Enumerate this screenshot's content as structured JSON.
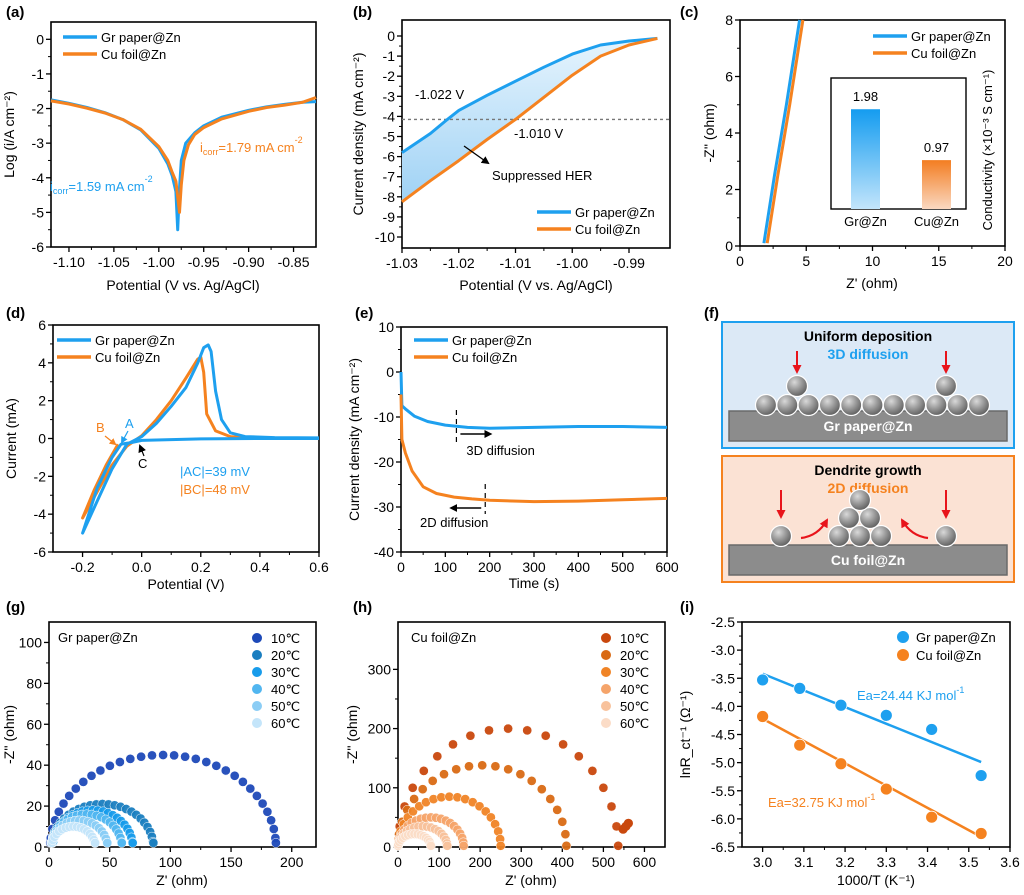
{
  "colors": {
    "gr": "#1ea0ef",
    "cu": "#f5821f",
    "black": "#000000",
    "panel_f_top_bg": "#dce9f6",
    "panel_f_top_border": "#1ea0ef",
    "panel_f_bottom_bg": "#fbe2d4",
    "panel_f_bottom_border": "#f5821f",
    "substrate": "#8c8c8c",
    "arrow_red": "#e8141b"
  },
  "chart_data": [
    {
      "id": "a",
      "panel_label": "(a)",
      "type": "line",
      "xlabel": "Potential (V vs. Ag/AgCl)",
      "ylabel": "Log (i/A cm⁻²)",
      "xlim": [
        -1.12,
        -0.825
      ],
      "ylim": [
        -6,
        0.5
      ],
      "xticks": [
        "-1.10",
        "-1.05",
        "-1.00",
        "-0.95",
        "-0.90",
        "-0.85"
      ],
      "xtick_values": [
        -1.1,
        -1.05,
        -1.0,
        -0.95,
        -0.9,
        -0.85
      ],
      "yticks": [
        "0",
        "-1",
        "-2",
        "-3",
        "-4",
        "-5",
        "-6"
      ],
      "ytick_values": [
        0,
        -1,
        -2,
        -3,
        -4,
        -5,
        -6
      ],
      "legend": [
        "Gr paper@Zn",
        "Cu foil@Zn"
      ],
      "legend_position": "top-left",
      "series": [
        {
          "name": "Gr paper@Zn",
          "color_key": "gr",
          "x": [
            -1.12,
            -1.1,
            -1.08,
            -1.06,
            -1.04,
            -1.02,
            -1.0,
            -0.99,
            -0.985,
            -0.981,
            -0.979,
            -0.977,
            -0.975,
            -0.97,
            -0.96,
            -0.95,
            -0.93,
            -0.9,
            -0.88,
            -0.86,
            -0.84,
            -0.825
          ],
          "y": [
            -1.75,
            -1.85,
            -1.97,
            -2.12,
            -2.32,
            -2.62,
            -3.15,
            -3.6,
            -3.95,
            -4.4,
            -5.5,
            -4.3,
            -3.5,
            -3.0,
            -2.7,
            -2.5,
            -2.25,
            -2.05,
            -1.95,
            -1.88,
            -1.82,
            -1.8
          ]
        },
        {
          "name": "Cu foil@Zn",
          "color_key": "cu",
          "x": [
            -1.12,
            -1.1,
            -1.08,
            -1.06,
            -1.04,
            -1.02,
            -1.0,
            -0.99,
            -0.985,
            -0.981,
            -0.977,
            -0.975,
            -0.972,
            -0.967,
            -0.96,
            -0.95,
            -0.93,
            -0.9,
            -0.88,
            -0.86,
            -0.84,
            -0.825
          ],
          "y": [
            -1.78,
            -1.87,
            -1.99,
            -2.13,
            -2.32,
            -2.6,
            -3.1,
            -3.5,
            -3.85,
            -4.1,
            -5.0,
            -4.2,
            -3.5,
            -3.05,
            -2.75,
            -2.55,
            -2.3,
            -2.08,
            -1.97,
            -1.9,
            -1.82,
            -1.68
          ]
        }
      ],
      "annotations": [
        {
          "text_main": "i",
          "text_sub": "corr",
          "text_rest": "=1.79 mA cm",
          "sup": "-2",
          "color_key": "cu"
        },
        {
          "text_main": "i",
          "text_sub": "corr",
          "text_rest": "=1.59 mA cm",
          "sup": "-2",
          "color_key": "gr"
        }
      ]
    },
    {
      "id": "b",
      "panel_label": "(b)",
      "type": "line",
      "xlabel": "Potential (V vs. Ag/AgCl)",
      "ylabel": "Current density (mA cm⁻²)",
      "xlim": [
        -1.03,
        -0.985
      ],
      "ylim": [
        -10.5,
        0.7
      ],
      "xticks": [
        "-1.03",
        "-1.02",
        "-1.01",
        "-1.00",
        "-0.99"
      ],
      "xtick_values": [
        -1.03,
        -1.02,
        -1.01,
        -1.0,
        -0.99
      ],
      "yticks": [
        "0",
        "-1",
        "-2",
        "-3",
        "-4",
        "-5",
        "-6",
        "-7",
        "-8",
        "-9",
        "-10"
      ],
      "ytick_values": [
        0,
        -1,
        -2,
        -3,
        -4,
        -5,
        -6,
        -7,
        -8,
        -9,
        -10
      ],
      "legend": [
        "Gr paper@Zn",
        "Cu foil@Zn"
      ],
      "legend_position": "bottom-right",
      "reference_line_y": -4.15,
      "series": [
        {
          "name": "Gr paper@Zn",
          "color_key": "gr",
          "x": [
            -1.03,
            -1.025,
            -1.022,
            -1.02,
            -1.015,
            -1.01,
            -1.005,
            -1.0,
            -0.995,
            -0.99,
            -0.985
          ],
          "y": [
            -5.8,
            -4.85,
            -4.15,
            -3.7,
            -2.95,
            -2.25,
            -1.55,
            -0.9,
            -0.45,
            -0.25,
            -0.12
          ]
        },
        {
          "name": "Cu foil@Zn",
          "color_key": "cu",
          "x": [
            -1.03,
            -1.025,
            -1.02,
            -1.015,
            -1.01,
            -1.005,
            -1.0,
            -0.995,
            -0.99,
            -0.985
          ],
          "y": [
            -8.25,
            -7.2,
            -6.2,
            -5.15,
            -4.15,
            -3.05,
            -1.95,
            -1.0,
            -0.45,
            -0.12
          ]
        }
      ],
      "annotations": [
        "-1.022 V",
        "-1.010 V",
        "Suppressed HER"
      ]
    },
    {
      "id": "c",
      "panel_label": "(c)",
      "type": "line",
      "xlabel": "Z' (ohm)",
      "ylabel": "-Z'' (ohm)",
      "xlim": [
        0,
        20
      ],
      "ylim": [
        0,
        8
      ],
      "xticks": [
        "0",
        "5",
        "10",
        "15",
        "20"
      ],
      "xtick_values": [
        0,
        5,
        10,
        15,
        20
      ],
      "yticks": [
        "0",
        "2",
        "4",
        "6",
        "8"
      ],
      "ytick_values": [
        0,
        2,
        4,
        6,
        8
      ],
      "legend": [
        "Gr paper@Zn",
        "Cu foil@Zn"
      ],
      "legend_position": "top-right",
      "series": [
        {
          "name": "Gr paper@Zn",
          "color_key": "gr",
          "x": [
            1.8,
            2.6,
            3.5,
            4.5
          ],
          "y": [
            0.1,
            2.5,
            5.0,
            8.0
          ]
        },
        {
          "name": "Cu foil@Zn",
          "color_key": "cu",
          "x": [
            2.05,
            2.85,
            3.75,
            4.75
          ],
          "y": [
            0.1,
            2.5,
            5.0,
            8.0
          ]
        }
      ],
      "inset": {
        "type": "bar",
        "categories": [
          "Gr@Zn",
          "Cu@Zn"
        ],
        "values": [
          1.98,
          0.97
        ],
        "value_labels": [
          "1.98",
          "0.97"
        ],
        "ylabel": "Conductivity (×10⁻³ S cm⁻¹)",
        "ylim": [
          0,
          2.6
        ]
      }
    },
    {
      "id": "d",
      "panel_label": "(d)",
      "type": "line",
      "xlabel": "Potential (V)",
      "ylabel": "Current (mA)",
      "xlim": [
        -0.3,
        0.6
      ],
      "ylim": [
        -6,
        6
      ],
      "xticks": [
        "-0.2",
        "0.0",
        "0.2",
        "0.4",
        "0.6"
      ],
      "xtick_values": [
        -0.2,
        0.0,
        0.2,
        0.4,
        0.6
      ],
      "yticks": [
        "6",
        "4",
        "2",
        "0",
        "-2",
        "-4",
        "-6"
      ],
      "ytick_values": [
        6,
        4,
        2,
        0,
        -2,
        -4,
        -6
      ],
      "legend": [
        "Gr paper@Zn",
        "Cu foil@Zn"
      ],
      "legend_position": "top-left",
      "series": [
        {
          "name": "Gr paper@Zn",
          "color_key": "gr",
          "x": [
            0.6,
            0.4,
            0.2,
            0.0,
            -0.03,
            -0.07,
            -0.1,
            -0.15,
            -0.2,
            -0.15,
            -0.1,
            -0.05,
            0.0,
            0.05,
            0.1,
            0.15,
            0.19,
            0.21,
            0.225,
            0.235,
            0.25,
            0.27,
            0.3,
            0.35,
            0.45,
            0.6
          ],
          "y": [
            0.0,
            0.0,
            -0.02,
            -0.1,
            -0.2,
            -0.3,
            -1.0,
            -2.6,
            -5.0,
            -3.3,
            -1.6,
            -0.3,
            0.1,
            0.8,
            1.7,
            2.7,
            4.0,
            4.8,
            4.95,
            4.6,
            2.5,
            1.0,
            0.3,
            0.1,
            0.05,
            0.03
          ]
        },
        {
          "name": "Cu foil@Zn",
          "color_key": "cu",
          "x": [
            -0.08,
            -0.12,
            -0.16,
            -0.2,
            -0.15,
            -0.1,
            -0.05,
            0.0,
            0.05,
            0.1,
            0.15,
            0.19,
            0.2,
            0.21,
            0.22,
            0.25,
            0.3,
            0.35
          ],
          "y": [
            -0.3,
            -1.4,
            -2.7,
            -4.2,
            -2.8,
            -1.4,
            -0.4,
            0.15,
            1.0,
            2.0,
            3.2,
            4.2,
            4.3,
            3.5,
            1.3,
            0.4,
            0.1,
            0.05
          ]
        }
      ],
      "annotations": {
        "A": "A",
        "B": "B",
        "C": "C",
        "ac": "|AC|=39 mV",
        "bc": "|BC|=48 mV"
      }
    },
    {
      "id": "e",
      "panel_label": "(e)",
      "type": "line",
      "xlabel": "Time (s)",
      "ylabel": "Current density (mA cm⁻²)",
      "xlim": [
        0,
        600
      ],
      "ylim": [
        -40,
        10
      ],
      "xticks": [
        "0",
        "100",
        "200",
        "300",
        "400",
        "500",
        "600"
      ],
      "xtick_values": [
        0,
        100,
        200,
        300,
        400,
        500,
        600
      ],
      "yticks": [
        "10",
        "0",
        "-10",
        "-20",
        "-30",
        "-40"
      ],
      "ytick_values": [
        10,
        0,
        -10,
        -20,
        -30,
        -40
      ],
      "legend": [
        "Gr paper@Zn",
        "Cu foil@Zn"
      ],
      "legend_position": "top-left",
      "series": [
        {
          "name": "Gr paper@Zn",
          "color_key": "gr",
          "x": [
            0,
            2,
            10,
            30,
            60,
            100,
            150,
            200,
            300,
            400,
            500,
            600
          ],
          "y": [
            0,
            -7.5,
            -8.2,
            -9.8,
            -11.0,
            -11.8,
            -12.3,
            -12.5,
            -12.3,
            -12.1,
            -12.1,
            -12.3
          ]
        },
        {
          "name": "Cu foil@Zn",
          "color_key": "cu",
          "x": [
            0,
            2,
            10,
            25,
            50,
            80,
            120,
            160,
            200,
            300,
            400,
            500,
            600
          ],
          "y": [
            -5,
            -15,
            -18,
            -22,
            -25.5,
            -27,
            -27.8,
            -28.2,
            -28.5,
            -28.8,
            -28.7,
            -28.4,
            -28.1
          ]
        }
      ],
      "markers": [
        {
          "x": 125,
          "label": "3D diffusion",
          "direction": "right"
        },
        {
          "x": 190,
          "label": "2D diffusion",
          "direction": "left"
        }
      ]
    },
    {
      "id": "g",
      "panel_label": "(g)",
      "type": "scatter",
      "xlabel": "Z' (ohm)",
      "ylabel": "-Z'' (ohm)",
      "xlim": [
        0,
        220
      ],
      "ylim": [
        0,
        110
      ],
      "xticks": [
        "0",
        "50",
        "100",
        "150",
        "200"
      ],
      "xtick_values": [
        0,
        50,
        100,
        150,
        200
      ],
      "yticks": [
        "0",
        "20",
        "40",
        "60",
        "80",
        "100"
      ],
      "ytick_values": [
        0,
        20,
        40,
        60,
        80,
        100
      ],
      "inner_title": "Gr paper@Zn",
      "legend_position": "top-right",
      "series": [
        {
          "name": "10℃",
          "color": "#1d49b8",
          "r_ct": 93,
          "center_x": 94,
          "peak": 45,
          "n": 32
        },
        {
          "name": "20℃",
          "color": "#1a7ec0",
          "r_ct": 42,
          "center_x": 44,
          "peak": 21,
          "n": 26
        },
        {
          "name": "30℃",
          "color": "#189ceb",
          "r_ct": 33,
          "center_x": 36,
          "peak": 18,
          "n": 24
        },
        {
          "name": "40℃",
          "color": "#51b6f0",
          "r_ct": 29,
          "center_x": 31,
          "peak": 16,
          "n": 22
        },
        {
          "name": "50℃",
          "color": "#8bcdf5",
          "r_ct": 23,
          "center_x": 25,
          "peak": 13,
          "n": 20
        },
        {
          "name": "60℃",
          "color": "#c4e5fa",
          "r_ct": 18,
          "center_x": 20,
          "peak": 10,
          "n": 18
        }
      ]
    },
    {
      "id": "h",
      "panel_label": "(h)",
      "type": "scatter",
      "xlabel": "Z' (ohm)",
      "ylabel": "-Z'' (ohm)",
      "xlim": [
        0,
        650
      ],
      "ylim": [
        0,
        380
      ],
      "xticks": [
        "0",
        "100",
        "200",
        "300",
        "400",
        "500",
        "600"
      ],
      "xtick_values": [
        0,
        100,
        200,
        300,
        400,
        500,
        600
      ],
      "yticks": [
        "0",
        "100",
        "200",
        "300"
      ],
      "ytick_values": [
        0,
        100,
        200,
        300
      ],
      "inner_title": "Cu foil@Zn",
      "legend_position": "top-right",
      "series": [
        {
          "name": "10℃",
          "color": "#c9480d",
          "r_ct": 268,
          "center_x": 268,
          "peak": 200,
          "n": 18,
          "tail": true
        },
        {
          "name": "20℃",
          "color": "#d96a14",
          "r_ct": 205,
          "center_x": 205,
          "peak": 138,
          "n": 20,
          "tail": false
        },
        {
          "name": "30℃",
          "color": "#f08426",
          "r_ct": 125,
          "center_x": 125,
          "peak": 85,
          "n": 20,
          "tail": false
        },
        {
          "name": "40℃",
          "color": "#f5a46a",
          "r_ct": 80,
          "center_x": 80,
          "peak": 50,
          "n": 20,
          "tail": false
        },
        {
          "name": "50℃",
          "color": "#f8c29c",
          "r_ct": 60,
          "center_x": 60,
          "peak": 35,
          "n": 18,
          "tail": false
        },
        {
          "name": "60℃",
          "color": "#fbdcc7",
          "r_ct": 40,
          "center_x": 40,
          "peak": 22,
          "n": 16,
          "tail": false
        }
      ]
    },
    {
      "id": "i",
      "panel_label": "(i)",
      "type": "scatter",
      "xlabel": "1000/T (K⁻¹)",
      "ylabel": "lnR_ct⁻¹ (Ω⁻¹)",
      "xlim": [
        2.95,
        3.6
      ],
      "ylim": [
        -6.5,
        -2.5
      ],
      "xticks": [
        "3.0",
        "3.1",
        "3.2",
        "3.3",
        "3.4",
        "3.5",
        "3.6"
      ],
      "xtick_values": [
        3.0,
        3.1,
        3.2,
        3.3,
        3.4,
        3.5,
        3.6
      ],
      "yticks": [
        "-2.5",
        "-3.0",
        "-3.5",
        "-4.0",
        "-4.5",
        "-5.0",
        "-5.5",
        "-6.0",
        "-6.5"
      ],
      "ytick_values": [
        -2.5,
        -3.0,
        -3.5,
        -4.0,
        -4.5,
        -5.0,
        -5.5,
        -6.0,
        -6.5
      ],
      "legend": [
        "Gr paper@Zn",
        "Cu foil@Zn"
      ],
      "legend_position": "top-right",
      "series": [
        {
          "name": "Gr paper@Zn",
          "color_key": "gr",
          "x": [
            3.0,
            3.09,
            3.19,
            3.3,
            3.41,
            3.53
          ],
          "y": [
            -3.53,
            -3.68,
            -3.98,
            -4.16,
            -4.41,
            -5.23
          ],
          "fit": {
            "x": [
              3.0,
              3.53
            ],
            "y": [
              -3.42,
              -4.99
            ]
          },
          "label": "Ea=24.44 KJ mol",
          "label_sup": "-1"
        },
        {
          "name": "Cu foil@Zn",
          "color_key": "cu",
          "x": [
            3.0,
            3.09,
            3.19,
            3.3,
            3.41,
            3.53
          ],
          "y": [
            -4.18,
            -4.69,
            -5.02,
            -5.47,
            -5.97,
            -6.26
          ],
          "fit": {
            "x": [
              3.0,
              3.53
            ],
            "y": [
              -4.22,
              -6.32
            ]
          },
          "label": "Ea=32.75 KJ mol",
          "label_sup": "-1"
        }
      ]
    }
  ],
  "panel_f": {
    "panel_label": "(f)",
    "top": {
      "title": "Uniform deposition",
      "subtitle": "3D diffusion",
      "substrate": "Gr paper@Zn"
    },
    "bottom": {
      "title": "Dendrite growth",
      "subtitle": "2D diffusion",
      "substrate": "Cu foil@Zn"
    }
  }
}
